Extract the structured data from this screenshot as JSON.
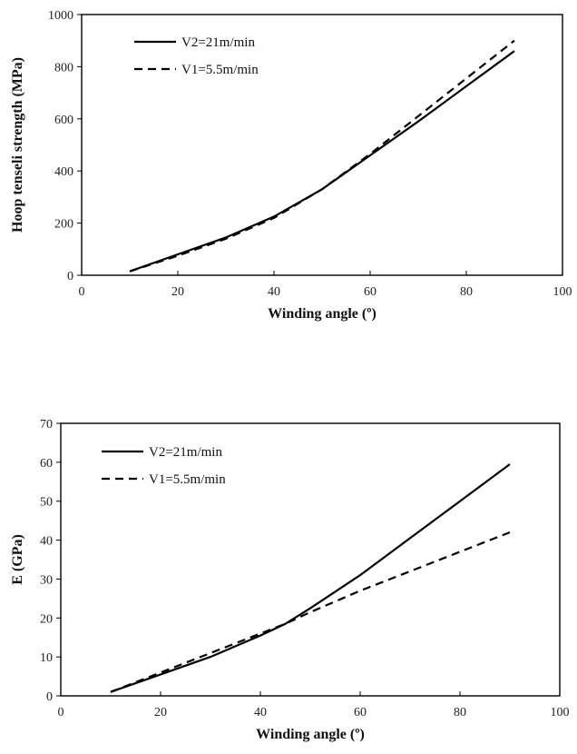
{
  "chart_data": [
    {
      "type": "line",
      "title": "",
      "xlabel": "Winding angle (º)",
      "ylabel": "Hoop tenseli strength (MPa)",
      "xlim": [
        0,
        100
      ],
      "ylim": [
        0,
        1000
      ],
      "xticks": [
        0,
        20,
        40,
        60,
        80,
        100
      ],
      "yticks": [
        0,
        200,
        400,
        600,
        800,
        1000
      ],
      "legend_position": "top-left",
      "series": [
        {
          "name": "V2=21m/min",
          "style": "solid",
          "color": "#000000",
          "x": [
            10,
            20,
            30,
            40,
            50,
            60,
            70,
            80,
            90
          ],
          "y": [
            15,
            80,
            145,
            225,
            330,
            460,
            590,
            725,
            860
          ]
        },
        {
          "name": "V1=5.5m/min",
          "style": "dashed",
          "color": "#000000",
          "x": [
            10,
            20,
            30,
            40,
            50,
            60,
            70,
            80,
            90
          ],
          "y": [
            15,
            75,
            140,
            220,
            330,
            465,
            610,
            755,
            900
          ]
        }
      ]
    },
    {
      "type": "line",
      "title": "",
      "xlabel": "Winding angle (º)",
      "ylabel": "E (GPa)",
      "xlim": [
        0,
        100
      ],
      "ylim": [
        0,
        70
      ],
      "xticks": [
        0,
        20,
        40,
        60,
        80,
        100
      ],
      "yticks": [
        0,
        10,
        20,
        30,
        40,
        50,
        60,
        70
      ],
      "legend_position": "top-left",
      "series": [
        {
          "name": "V2=21m/min",
          "style": "solid",
          "color": "#000000",
          "x": [
            10,
            20,
            30,
            40,
            45,
            50,
            60,
            70,
            80,
            90
          ],
          "y": [
            1,
            5.5,
            10,
            15.5,
            18.5,
            22.5,
            31,
            40.5,
            50,
            59.5
          ]
        },
        {
          "name": "V1=5.5m/min",
          "style": "dashed",
          "color": "#000000",
          "x": [
            10,
            20,
            30,
            40,
            45,
            50,
            60,
            70,
            80,
            90
          ],
          "y": [
            1,
            6,
            11,
            16,
            18.5,
            21.5,
            27,
            32,
            37,
            42
          ]
        }
      ]
    }
  ]
}
